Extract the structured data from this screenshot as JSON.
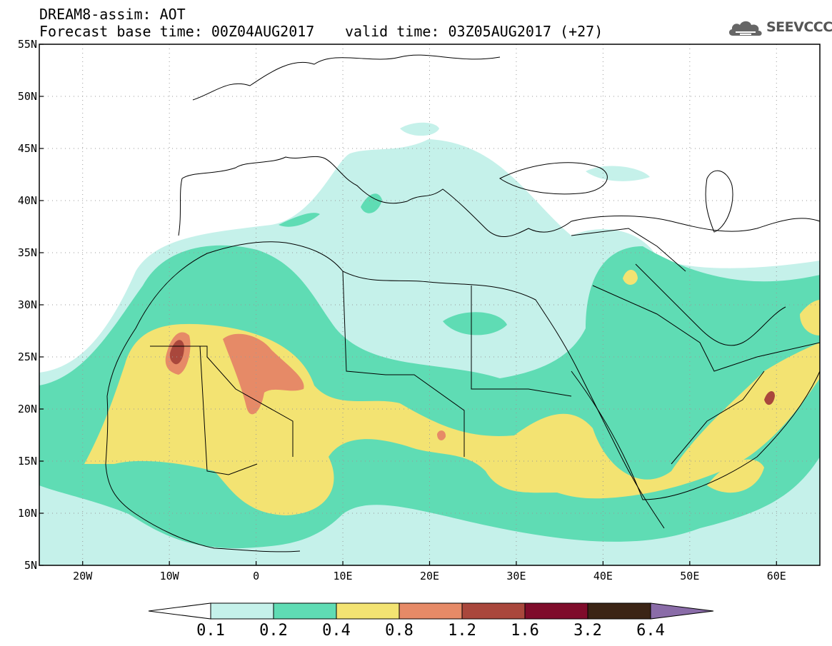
{
  "title": {
    "line1": "DREAM8-assim: AOT",
    "line2": "Forecast base time: 00Z04AUG2017",
    "valid": "valid time: 03Z05AUG2017 (+27)"
  },
  "logo": {
    "text": "SEEVCCC",
    "icon": "cloud-icon"
  },
  "map": {
    "lat_labels": [
      "55N",
      "50N",
      "45N",
      "40N",
      "35N",
      "30N",
      "25N",
      "20N",
      "15N",
      "10N",
      "5N"
    ],
    "lon_labels": [
      "20W",
      "10W",
      "0",
      "10E",
      "20E",
      "30E",
      "40E",
      "50E",
      "60E"
    ],
    "lat_range": [
      5,
      55
    ],
    "lon_range": [
      -25,
      65
    ]
  },
  "colorbar": {
    "labels": [
      "0.1",
      "0.2",
      "0.4",
      "0.8",
      "1.2",
      "1.6",
      "3.2",
      "6.4"
    ],
    "colors": [
      "#c5f1ea",
      "#5fdcb4",
      "#f3e372",
      "#e68a67",
      "#a9473c",
      "#7f0c2b",
      "#3b2415",
      "#8a6ca8"
    ]
  }
}
